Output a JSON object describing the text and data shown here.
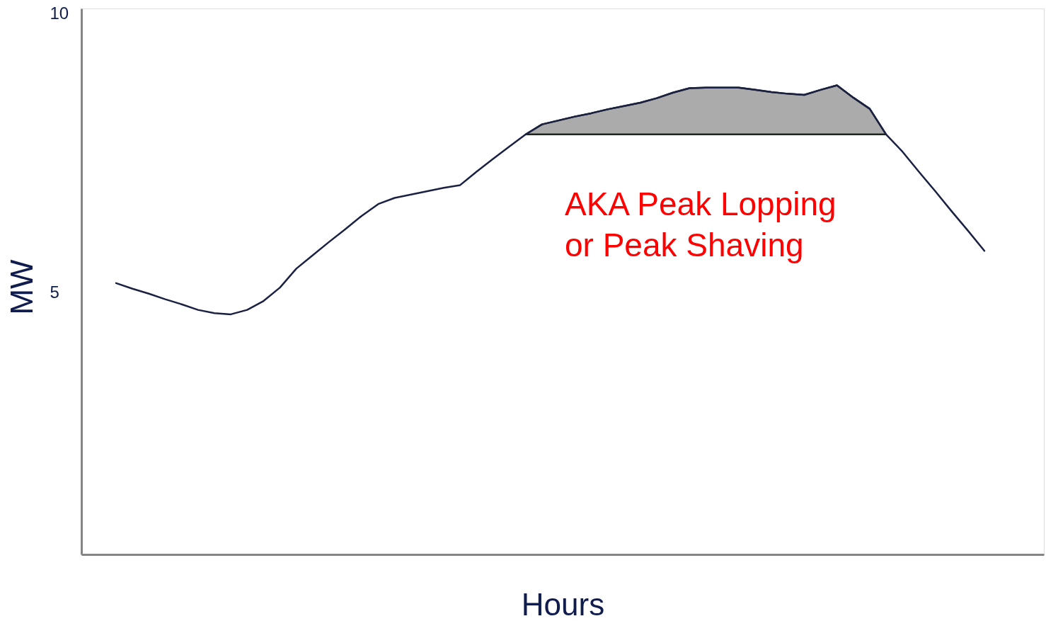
{
  "chart_data": {
    "type": "line",
    "xlabel": "Hours",
    "ylabel": "MW",
    "annotations": [
      "AKA Peak Lopping\nor Peak Shaving"
    ],
    "categories": [
      null,
      null,
      null,
      null,
      null,
      null,
      null,
      null,
      null,
      null,
      null,
      null,
      null,
      null,
      null,
      null,
      null,
      null,
      null,
      null,
      null,
      null,
      null,
      null,
      null,
      null,
      null,
      null,
      null,
      null,
      null,
      null,
      null,
      null,
      null,
      null,
      null,
      null,
      null,
      null,
      null,
      null,
      null,
      null,
      null,
      null,
      null,
      null,
      null,
      null,
      null,
      null,
      null,
      null
    ],
    "ylim": [
      0.3,
      10.1
    ],
    "yticks": [
      5,
      10
    ],
    "tick_labels": "y",
    "grid": false,
    "series": [
      {
        "color": "#1b2142",
        "values": [
          5.17,
          5.07,
          4.98,
          4.88,
          4.79,
          4.69,
          4.63,
          4.61,
          4.69,
          4.85,
          5.09,
          5.43,
          5.67,
          5.91,
          6.14,
          6.38,
          6.59,
          6.7,
          6.76,
          6.82,
          6.88,
          6.93,
          7.17,
          7.4,
          7.62,
          7.84,
          8.02,
          8.09,
          8.16,
          8.22,
          8.29,
          8.35,
          8.41,
          8.49,
          8.59,
          8.67,
          8.68,
          8.68,
          8.68,
          8.64,
          8.6,
          8.57,
          8.55,
          8.64,
          8.72,
          8.5,
          8.3,
          7.84,
          7.53,
          7.17,
          6.82,
          6.46,
          6.11,
          5.75
        ],
        "upper": [
          null,
          null,
          null,
          null,
          null,
          null,
          null,
          null,
          null,
          null,
          null,
          null,
          null,
          null,
          null,
          null,
          null,
          null,
          null,
          null,
          null,
          null,
          null,
          null,
          null,
          7.84,
          8.02,
          8.09,
          8.16,
          8.22,
          8.29,
          8.35,
          8.41,
          8.49,
          8.59,
          8.67,
          8.68,
          8.68,
          8.68,
          8.64,
          8.6,
          8.57,
          8.55,
          8.64,
          8.72,
          8.5,
          8.3,
          7.84,
          null,
          null,
          null,
          null,
          null,
          null
        ],
        "lower": [
          null,
          null,
          null,
          null,
          null,
          null,
          null,
          null,
          null,
          null,
          null,
          null,
          null,
          null,
          null,
          null,
          null,
          null,
          null,
          null,
          null,
          null,
          null,
          null,
          null,
          7.84,
          7.84,
          7.84,
          7.84,
          7.84,
          7.84,
          7.84,
          7.84,
          7.84,
          7.84,
          7.84,
          7.84,
          7.84,
          7.84,
          7.84,
          7.84,
          7.84,
          7.84,
          7.84,
          7.84,
          7.84,
          7.84,
          7.84,
          null,
          null,
          null,
          null,
          null,
          null
        ]
      }
    ]
  }
}
